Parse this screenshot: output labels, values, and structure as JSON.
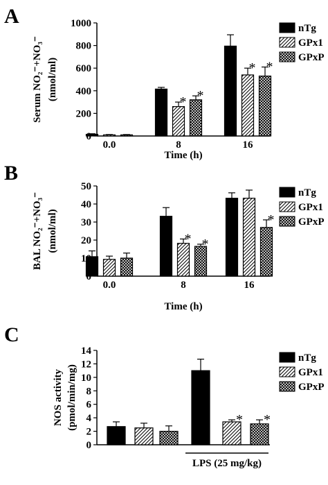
{
  "chart_data": [
    {
      "panel": "A",
      "type": "bar",
      "categories": [
        "0.0",
        "8",
        "16"
      ],
      "xlabel": "Time (h)",
      "ylabel_lines": [
        "Serum NO₂⁻+NO₃⁻",
        "(nmol/ml)"
      ],
      "ylim": [
        0,
        1000
      ],
      "yticks": [
        "0",
        "200",
        "400",
        "600",
        "800",
        "1000"
      ],
      "legend_position": "right",
      "series": [
        {
          "name": "nTg",
          "pattern": "solid",
          "values": [
            15,
            415,
            795
          ],
          "errors": [
            5,
            15,
            100
          ],
          "significant": [
            false,
            false,
            false
          ]
        },
        {
          "name": "GPx1",
          "pattern": "hatch",
          "values": [
            10,
            260,
            540
          ],
          "errors": [
            3,
            40,
            60
          ],
          "significant": [
            false,
            true,
            true
          ]
        },
        {
          "name": "GPxP",
          "pattern": "crosshatch",
          "values": [
            10,
            320,
            530
          ],
          "errors": [
            3,
            35,
            80
          ],
          "significant": [
            false,
            true,
            true
          ]
        }
      ]
    },
    {
      "panel": "B",
      "type": "bar",
      "categories": [
        "0.0",
        "8",
        "16"
      ],
      "xlabel": "Time (h)",
      "ylabel_lines": [
        "BAL NO₂⁻+NO₃⁻",
        "(nmol/ml)"
      ],
      "ylim": [
        0,
        50
      ],
      "yticks": [
        "0",
        "10",
        "20",
        "30",
        "40",
        "50"
      ],
      "legend_position": "right",
      "series": [
        {
          "name": "nTg",
          "pattern": "solid",
          "values": [
            10.8,
            33.2,
            43.2
          ],
          "errors": [
            3.2,
            4.8,
            3.0
          ],
          "significant": [
            false,
            false,
            false
          ]
        },
        {
          "name": "GPx1",
          "pattern": "hatch",
          "values": [
            9.3,
            18.2,
            43.2
          ],
          "errors": [
            1.8,
            2.4,
            4.5
          ],
          "significant": [
            false,
            true,
            false
          ]
        },
        {
          "name": "GPxP",
          "pattern": "crosshatch",
          "values": [
            10.0,
            16.5,
            27.0
          ],
          "errors": [
            2.8,
            1.2,
            4.2
          ],
          "significant": [
            false,
            true,
            true
          ]
        }
      ]
    },
    {
      "panel": "C",
      "type": "bar",
      "categories": [
        "nTg",
        "GPx1",
        "GPxP",
        "nTg",
        "GPx1",
        "GPxP"
      ],
      "xlabel": "",
      "group_label": "LPS (25 mg/kg)",
      "ylabel_lines": [
        "NOS activity",
        "(pmol/min/mg)"
      ],
      "ylim": [
        0,
        14
      ],
      "yticks": [
        "0",
        "2",
        "4",
        "6",
        "8",
        "10",
        "12",
        "14"
      ],
      "legend_position": "right",
      "legend": [
        "nTg",
        "GPx1",
        "GPxP"
      ],
      "values": [
        2.7,
        2.5,
        2.0,
        11.0,
        3.4,
        3.1
      ],
      "errors": [
        0.7,
        0.7,
        0.8,
        1.7,
        0.3,
        0.6
      ],
      "patterns": [
        "solid",
        "hatch",
        "crosshatch",
        "solid",
        "hatch",
        "crosshatch"
      ],
      "significant": [
        false,
        false,
        false,
        false,
        true,
        true
      ]
    }
  ]
}
